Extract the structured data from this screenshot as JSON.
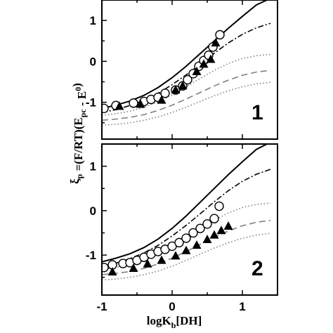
{
  "chart_data": [
    {
      "type": "line",
      "panel_label": "1",
      "xlim": [
        -1,
        1.5
      ],
      "ylim": [
        -1.9,
        1.5
      ],
      "x_ticks": [
        -1,
        0,
        1
      ],
      "y_ticks": [
        -1,
        0,
        1
      ],
      "series": [
        {
          "style": "solid",
          "color": "#000000",
          "points": [
            [
              -1,
              -1.15
            ],
            [
              -0.8,
              -1.07
            ],
            [
              -0.6,
              -0.97
            ],
            [
              -0.4,
              -0.83
            ],
            [
              -0.2,
              -0.64
            ],
            [
              0,
              -0.4
            ],
            [
              0.2,
              -0.12
            ],
            [
              0.4,
              0.19
            ],
            [
              0.6,
              0.5
            ],
            [
              0.8,
              0.81
            ],
            [
              1.0,
              1.1
            ],
            [
              1.2,
              1.38
            ],
            [
              1.35,
              1.5
            ]
          ]
        },
        {
          "style": "dashdot",
          "color": "#000000",
          "points": [
            [
              -1,
              -1.25
            ],
            [
              -0.8,
              -1.18
            ],
            [
              -0.6,
              -1.08
            ],
            [
              -0.4,
              -0.95
            ],
            [
              -0.2,
              -0.78
            ],
            [
              0,
              -0.57
            ],
            [
              0.2,
              -0.33
            ],
            [
              0.4,
              -0.07
            ],
            [
              0.6,
              0.2
            ],
            [
              0.8,
              0.45
            ],
            [
              1.0,
              0.66
            ],
            [
              1.2,
              0.82
            ],
            [
              1.4,
              0.93
            ]
          ]
        },
        {
          "style": "dotted",
          "color": "#808080",
          "points": [
            [
              -1,
              -1.32
            ],
            [
              -0.8,
              -1.28
            ],
            [
              -0.6,
              -1.22
            ],
            [
              -0.4,
              -1.12
            ],
            [
              -0.2,
              -0.99
            ],
            [
              0,
              -0.82
            ],
            [
              0.2,
              -0.62
            ],
            [
              0.4,
              -0.42
            ],
            [
              0.6,
              -0.22
            ],
            [
              0.8,
              -0.05
            ],
            [
              1.0,
              0.07
            ],
            [
              1.2,
              0.14
            ],
            [
              1.4,
              0.17
            ]
          ]
        },
        {
          "style": "dashed",
          "color": "#808080",
          "points": [
            [
              -1,
              -1.44
            ],
            [
              -0.8,
              -1.41
            ],
            [
              -0.6,
              -1.37
            ],
            [
              -0.4,
              -1.3
            ],
            [
              -0.2,
              -1.2
            ],
            [
              0,
              -1.07
            ],
            [
              0.2,
              -0.92
            ],
            [
              0.4,
              -0.76
            ],
            [
              0.6,
              -0.6
            ],
            [
              0.8,
              -0.46
            ],
            [
              1.0,
              -0.34
            ],
            [
              1.2,
              -0.26
            ],
            [
              1.4,
              -0.22
            ]
          ]
        },
        {
          "style": "dotted",
          "color": "#808080",
          "points": [
            [
              -1,
              -1.56
            ],
            [
              -0.8,
              -1.54
            ],
            [
              -0.6,
              -1.5
            ],
            [
              -0.4,
              -1.44
            ],
            [
              -0.2,
              -1.36
            ],
            [
              0,
              -1.25
            ],
            [
              0.2,
              -1.12
            ],
            [
              0.4,
              -0.98
            ],
            [
              0.6,
              -0.84
            ],
            [
              0.8,
              -0.72
            ],
            [
              1.0,
              -0.62
            ],
            [
              1.2,
              -0.55
            ],
            [
              1.4,
              -0.51
            ]
          ]
        }
      ],
      "markers": [
        {
          "shape": "circle",
          "points": [
            [
              -0.97,
              -1.15
            ],
            [
              -0.8,
              -1.08
            ],
            [
              -0.55,
              -1.02
            ],
            [
              -0.4,
              -0.98
            ],
            [
              -0.3,
              -0.93
            ],
            [
              -0.2,
              -0.88
            ],
            [
              -0.1,
              -0.78
            ],
            [
              0.05,
              -0.7
            ],
            [
              0.15,
              -0.6
            ],
            [
              0.22,
              -0.45
            ],
            [
              0.3,
              -0.3
            ],
            [
              0.38,
              -0.12
            ],
            [
              0.45,
              0.02
            ],
            [
              0.52,
              0.15
            ],
            [
              0.58,
              0.35
            ],
            [
              0.68,
              0.65
            ]
          ]
        },
        {
          "shape": "triangle",
          "points": [
            [
              -0.75,
              -1.1
            ],
            [
              -0.45,
              -1.05
            ],
            [
              -0.15,
              -0.95
            ],
            [
              0.05,
              -0.7
            ],
            [
              0.15,
              -0.6
            ],
            [
              0.35,
              -0.25
            ],
            [
              0.45,
              -0.07
            ],
            [
              0.55,
              0.05
            ],
            [
              0.62,
              0.45
            ]
          ]
        }
      ]
    },
    {
      "type": "line",
      "panel_label": "2",
      "xlim": [
        -1,
        1.5
      ],
      "ylim": [
        -1.9,
        1.5
      ],
      "x_ticks": [
        -1,
        0,
        1
      ],
      "y_ticks": [
        -1,
        0,
        1
      ],
      "xlabel": "logK_b[DH]",
      "series": [
        {
          "style": "solid",
          "color": "#000000",
          "points": [
            [
              -1,
              -1.15
            ],
            [
              -0.8,
              -1.07
            ],
            [
              -0.6,
              -0.97
            ],
            [
              -0.4,
              -0.83
            ],
            [
              -0.2,
              -0.64
            ],
            [
              0,
              -0.4
            ],
            [
              0.2,
              -0.12
            ],
            [
              0.4,
              0.19
            ],
            [
              0.6,
              0.5
            ],
            [
              0.8,
              0.81
            ],
            [
              1.0,
              1.1
            ],
            [
              1.2,
              1.38
            ],
            [
              1.35,
              1.5
            ]
          ]
        },
        {
          "style": "dashdot",
          "color": "#000000",
          "points": [
            [
              -1,
              -1.25
            ],
            [
              -0.8,
              -1.18
            ],
            [
              -0.6,
              -1.08
            ],
            [
              -0.4,
              -0.95
            ],
            [
              -0.2,
              -0.78
            ],
            [
              0,
              -0.57
            ],
            [
              0.2,
              -0.33
            ],
            [
              0.4,
              -0.07
            ],
            [
              0.6,
              0.2
            ],
            [
              0.8,
              0.45
            ],
            [
              1.0,
              0.66
            ],
            [
              1.2,
              0.82
            ],
            [
              1.4,
              0.93
            ]
          ]
        },
        {
          "style": "dotted",
          "color": "#808080",
          "points": [
            [
              -1,
              -1.32
            ],
            [
              -0.8,
              -1.28
            ],
            [
              -0.6,
              -1.22
            ],
            [
              -0.4,
              -1.12
            ],
            [
              -0.2,
              -0.99
            ],
            [
              0,
              -0.82
            ],
            [
              0.2,
              -0.62
            ],
            [
              0.4,
              -0.42
            ],
            [
              0.6,
              -0.22
            ],
            [
              0.8,
              -0.05
            ],
            [
              1.0,
              0.07
            ],
            [
              1.2,
              0.14
            ],
            [
              1.4,
              0.17
            ]
          ]
        },
        {
          "style": "dashed",
          "color": "#808080",
          "points": [
            [
              -1,
              -1.44
            ],
            [
              -0.8,
              -1.41
            ],
            [
              -0.6,
              -1.37
            ],
            [
              -0.4,
              -1.3
            ],
            [
              -0.2,
              -1.2
            ],
            [
              0,
              -1.07
            ],
            [
              0.2,
              -0.92
            ],
            [
              0.4,
              -0.76
            ],
            [
              0.6,
              -0.6
            ],
            [
              0.8,
              -0.46
            ],
            [
              1.0,
              -0.34
            ],
            [
              1.2,
              -0.26
            ],
            [
              1.4,
              -0.22
            ]
          ]
        },
        {
          "style": "dotted",
          "color": "#808080",
          "points": [
            [
              -1,
              -1.56
            ],
            [
              -0.8,
              -1.54
            ],
            [
              -0.6,
              -1.5
            ],
            [
              -0.4,
              -1.44
            ],
            [
              -0.2,
              -1.36
            ],
            [
              0,
              -1.25
            ],
            [
              0.2,
              -1.12
            ],
            [
              0.4,
              -0.98
            ],
            [
              0.6,
              -0.84
            ],
            [
              0.8,
              -0.72
            ],
            [
              1.0,
              -0.62
            ],
            [
              1.2,
              -0.55
            ],
            [
              1.4,
              -0.51
            ]
          ]
        }
      ],
      "markers": [
        {
          "shape": "circle",
          "points": [
            [
              -0.97,
              -1.28
            ],
            [
              -0.85,
              -1.22
            ],
            [
              -0.7,
              -1.19
            ],
            [
              -0.6,
              -1.17
            ],
            [
              -0.5,
              -1.12
            ],
            [
              -0.4,
              -1.05
            ],
            [
              -0.3,
              -0.98
            ],
            [
              -0.2,
              -0.92
            ],
            [
              -0.1,
              -0.87
            ],
            [
              0,
              -0.8
            ],
            [
              0.1,
              -0.72
            ],
            [
              0.2,
              -0.62
            ],
            [
              0.3,
              -0.5
            ],
            [
              0.4,
              -0.4
            ],
            [
              0.5,
              -0.3
            ],
            [
              0.6,
              -0.18
            ],
            [
              0.67,
              0.1
            ]
          ]
        },
        {
          "shape": "triangle",
          "points": [
            [
              -0.85,
              -1.38
            ],
            [
              -0.55,
              -1.3
            ],
            [
              -0.35,
              -1.2
            ],
            [
              -0.15,
              -1.12
            ],
            [
              0.05,
              -1.02
            ],
            [
              0.2,
              -0.9
            ],
            [
              0.35,
              -0.78
            ],
            [
              0.5,
              -0.65
            ],
            [
              0.6,
              -0.55
            ],
            [
              0.7,
              -0.45
            ],
            [
              0.8,
              -0.35
            ]
          ]
        }
      ]
    }
  ],
  "shared_ylabel": "ξ_p =(F/RT)(E_pc - E^0)"
}
